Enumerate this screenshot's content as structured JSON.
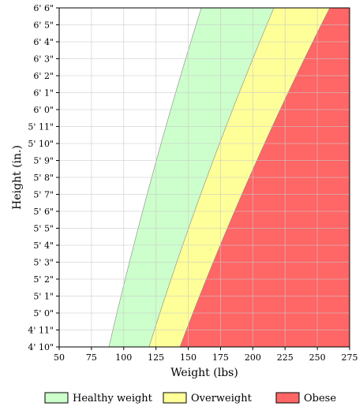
{
  "chart_data": {
    "type": "area",
    "xlabel": "Weight (lbs)",
    "ylabel": "Height (in.)",
    "xlim": [
      50,
      275
    ],
    "ylim": [
      58,
      78
    ],
    "x_ticks": [
      "50",
      "75",
      "100",
      "125",
      "150",
      "175",
      "200",
      "225",
      "250",
      "275"
    ],
    "y_ticks": [
      {
        "v": 58,
        "label": "4' 10\""
      },
      {
        "v": 59,
        "label": "4' 11\""
      },
      {
        "v": 60,
        "label": "5' 0\""
      },
      {
        "v": 61,
        "label": "5' 1\""
      },
      {
        "v": 62,
        "label": "5' 2\""
      },
      {
        "v": 63,
        "label": "5' 3\""
      },
      {
        "v": 64,
        "label": "5' 4\""
      },
      {
        "v": 65,
        "label": "5' 5\""
      },
      {
        "v": 66,
        "label": "5' 6\""
      },
      {
        "v": 67,
        "label": "5' 7\""
      },
      {
        "v": 68,
        "label": "5' 8\""
      },
      {
        "v": 69,
        "label": "5' 9\""
      },
      {
        "v": 70,
        "label": "5' 10\""
      },
      {
        "v": 71,
        "label": "5' 11\""
      },
      {
        "v": 72,
        "label": "6' 0\""
      },
      {
        "v": 73,
        "label": "6' 1\""
      },
      {
        "v": 74,
        "label": "6' 2\""
      },
      {
        "v": 75,
        "label": "6' 3\""
      },
      {
        "v": 76,
        "label": "6' 4\""
      },
      {
        "v": 77,
        "label": "6' 5\""
      },
      {
        "v": 78,
        "label": "6' 6\""
      }
    ],
    "grid": true,
    "legend_position": "bottom",
    "series": [
      {
        "name": "Healthy weight",
        "color": "#ccffcc",
        "bmi_lower": 18.5
      },
      {
        "name": "Overweight",
        "color": "#ffff99",
        "bmi_lower": 25
      },
      {
        "name": "Obese",
        "color": "#ff6666",
        "bmi_lower": 30
      }
    ]
  }
}
